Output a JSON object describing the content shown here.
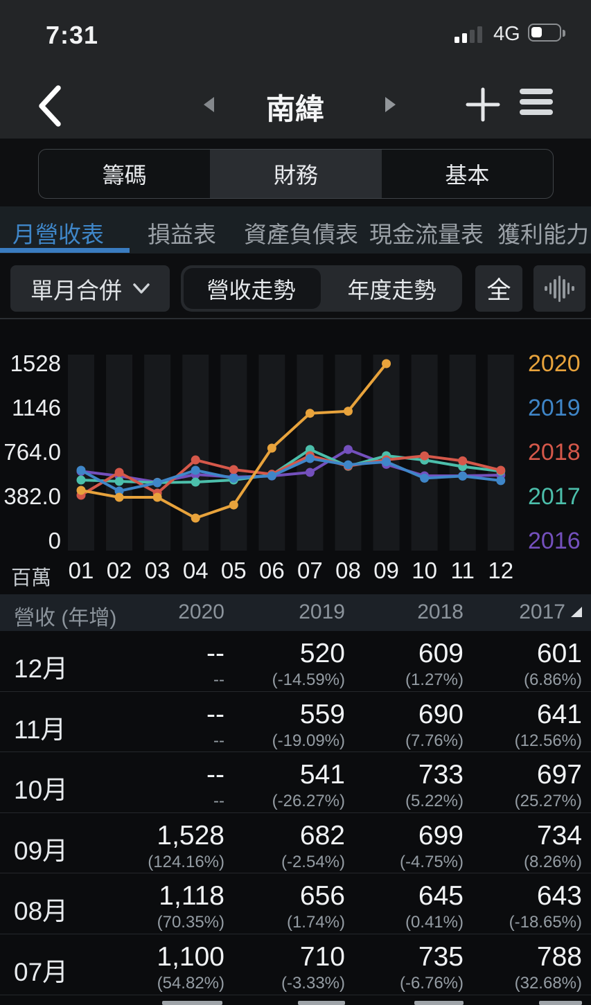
{
  "status_bar": {
    "time": "7:31",
    "network": "4G",
    "signal_bars_filled": 2,
    "signal_bars_total": 4,
    "battery_percent": 40
  },
  "nav": {
    "title": "南緯"
  },
  "tabs": {
    "items": [
      "籌碼",
      "財務",
      "基本"
    ],
    "active": "財務"
  },
  "subtabs": {
    "items": [
      "月營收表",
      "損益表",
      "資產負債表",
      "現金流量表",
      "獲利能力"
    ],
    "active": "月營收表",
    "active_color": "#3f86c8"
  },
  "controls": {
    "dropdown_label": "單月合併",
    "toggle": [
      "營收走勢",
      "年度走勢"
    ],
    "toggle_active": "營收走勢",
    "all_button": "全"
  },
  "chart_data": {
    "type": "line",
    "title": "",
    "unit_label": "百萬",
    "x_labels": [
      "01",
      "02",
      "03",
      "04",
      "05",
      "06",
      "07",
      "08",
      "09",
      "10",
      "11",
      "12"
    ],
    "y_ticks": [
      {
        "value": 1528,
        "label": "1528"
      },
      {
        "value": 1146,
        "label": "1146"
      },
      {
        "value": 764,
        "label": "764.0"
      },
      {
        "value": 382,
        "label": "382.0"
      },
      {
        "value": 0,
        "label": "0"
      }
    ],
    "ylim": [
      0,
      1528
    ],
    "grid": "vertical-bands",
    "legend_position": "right",
    "legend_order": [
      "2020",
      "2019",
      "2018",
      "2017",
      "2016"
    ],
    "series": [
      {
        "name": "2016",
        "color": "#7450bd",
        "values": [
          600,
          560,
          505,
          573,
          550,
          560,
          591,
          788,
          660,
          561,
          561,
          567
        ]
      },
      {
        "name": "2017",
        "color": "#4cbfab",
        "values": [
          525,
          513,
          503,
          507,
          525,
          570,
          788,
          643,
          734,
          697,
          641,
          601
        ]
      },
      {
        "name": "2018",
        "color": "#d5584a",
        "values": [
          394,
          591,
          412,
          698,
          615,
          575,
          735,
          645,
          699,
          733,
          690,
          609
        ]
      },
      {
        "name": "2019",
        "color": "#3f86c8",
        "values": [
          609,
          430,
          501,
          609,
          540,
          561,
          710,
          656,
          682,
          541,
          559,
          520
        ]
      },
      {
        "name": "2020",
        "color": "#e8a33c",
        "values": [
          436,
          376,
          376,
          197,
          310,
          800,
          1100,
          1118,
          1528,
          null,
          null,
          null
        ]
      }
    ]
  },
  "table": {
    "header": {
      "label": "營收 (年增)",
      "years": [
        "2020",
        "2019",
        "2018",
        "2017"
      ],
      "sorted_year": "2017"
    },
    "rows": [
      {
        "month": "12月",
        "values": [
          "--",
          "520",
          "609",
          "601"
        ],
        "yoy": [
          "--",
          "(-14.59%)",
          "(1.27%)",
          "(6.86%)"
        ]
      },
      {
        "month": "11月",
        "values": [
          "--",
          "559",
          "690",
          "641"
        ],
        "yoy": [
          "--",
          "(-19.09%)",
          "(7.76%)",
          "(12.56%)"
        ]
      },
      {
        "month": "10月",
        "values": [
          "--",
          "541",
          "733",
          "697"
        ],
        "yoy": [
          "--",
          "(-26.27%)",
          "(5.22%)",
          "(25.27%)"
        ]
      },
      {
        "month": "09月",
        "values": [
          "1,528",
          "682",
          "699",
          "734"
        ],
        "yoy": [
          "(124.16%)",
          "(-2.54%)",
          "(-4.75%)",
          "(8.26%)"
        ]
      },
      {
        "month": "08月",
        "values": [
          "1,118",
          "656",
          "645",
          "643"
        ],
        "yoy": [
          "(70.35%)",
          "(1.74%)",
          "(0.41%)",
          "(-18.65%)"
        ]
      },
      {
        "month": "07月",
        "values": [
          "1,100",
          "710",
          "735",
          "788"
        ],
        "yoy": [
          "(54.82%)",
          "(-3.33%)",
          "(-6.76%)",
          "(32.68%)"
        ]
      }
    ],
    "has_partial_next_row": true
  }
}
